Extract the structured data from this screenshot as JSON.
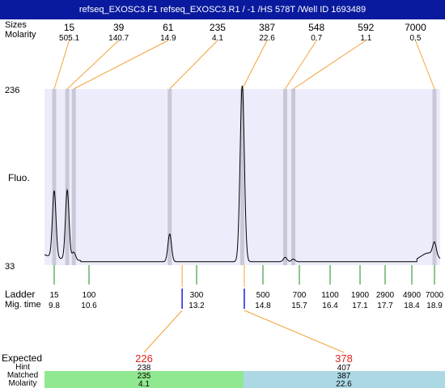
{
  "title": "refseq_EXOSC3.F1  refseq_EXOSC3.R1  / -1  /HS 578T  /Well ID 1693489",
  "colors": {
    "title_bg": "#0a1a9e",
    "plot_bg": "#ececfa",
    "peak_band": "#c8c8d8",
    "connector": "#f2a23a",
    "ladder_tick": "#1e8a1e",
    "expected_tick": "#1a1ae6",
    "expected_value": "#e0201c",
    "matched_left_bg": "#90e890",
    "matched_right_bg": "#acd8e6"
  },
  "labels": {
    "sizes": "Sizes",
    "molarity": "Molarity",
    "fluo": "Fluo.",
    "ladder": "Ladder",
    "mig_time": "Mig. time",
    "expected": "Expected",
    "hint": "Hint",
    "matched": "Matched",
    "molarity_bottom": "Molarity"
  },
  "chart_data": {
    "type": "line",
    "title": "refseq_EXOSC3.F1  refseq_EXOSC3.R1  / -1  /HS 578T  /Well ID 1693489",
    "ylabel": "Fluo.",
    "ylim": [
      33,
      236
    ],
    "y_ticks": [
      33,
      236
    ],
    "x_scale": "migration time",
    "peaks": [
      {
        "size": "15",
        "molarity": "505.1",
        "mig_time": 9.8,
        "height": 110
      },
      {
        "size": "39",
        "molarity": "140.7",
        "mig_time": 10.1,
        "height": 113
      },
      {
        "size": "61",
        "molarity": "14.9",
        "mig_time": 10.25,
        "height": 42
      },
      {
        "size": "235",
        "molarity": "4.1",
        "mig_time": 12.55,
        "height": 65
      },
      {
        "size": "387",
        "molarity": "22.6",
        "mig_time": 14.3,
        "height": 236
      },
      {
        "size": "548",
        "molarity": "0.7",
        "mig_time": 15.35,
        "height": 38
      },
      {
        "size": "592",
        "molarity": "1.1",
        "mig_time": 15.55,
        "height": 36
      },
      {
        "size": "7000",
        "molarity": "0.5",
        "mig_time": 18.9,
        "height": 48
      }
    ],
    "ladder": [
      {
        "size": "15",
        "mig_time": "9.8"
      },
      {
        "size": "100",
        "mig_time": "10.6"
      },
      {
        "size": "300",
        "mig_time": "13.2"
      },
      {
        "size": "500",
        "mig_time": "14.8"
      },
      {
        "size": "700",
        "mig_time": "15.7"
      },
      {
        "size": "1100",
        "mig_time": "16.4"
      },
      {
        "size": "1900",
        "mig_time": "17.1"
      },
      {
        "size": "2900",
        "mig_time": "17.7"
      },
      {
        "size": "4900",
        "mig_time": "18.4"
      },
      {
        "size": "7000",
        "mig_time": "18.9"
      }
    ],
    "expected": [
      {
        "expected": "226",
        "hint": "238",
        "matched": "235",
        "molarity": "4.1",
        "mig_time": 12.85
      },
      {
        "expected": "378",
        "hint": "407",
        "matched": "387",
        "molarity": "22.6",
        "mig_time": 14.35
      }
    ]
  }
}
